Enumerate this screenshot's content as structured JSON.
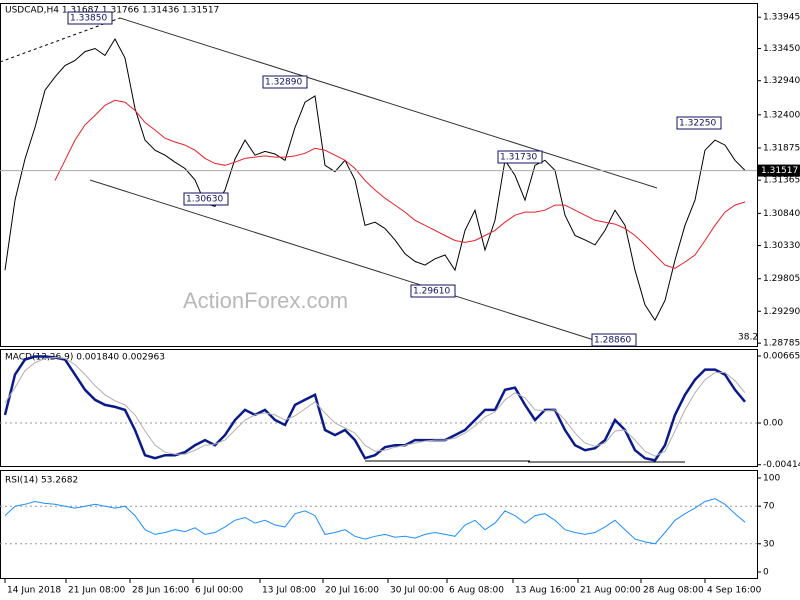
{
  "chart_data": [
    {
      "type": "line",
      "title": "USDCAD,H4  1.31687 1.31766 1.31436 1.31517",
      "watermark": "ActionForex.com",
      "last_price": 1.31517,
      "annotations": [
        "1.33850",
        "1.32890",
        "1.30630",
        "1.29610",
        "1.31730",
        "1.32250",
        "1.28860",
        "38.2"
      ],
      "xlim": [
        -0.5,
        75.2
      ],
      "ylim": [
        1.2874,
        1.3417
      ],
      "yticks": [
        {
          "value": 1.33945,
          "label": "1.33945"
        },
        {
          "value": 1.3345,
          "label": "1.33450"
        },
        {
          "value": 1.3294,
          "label": "1.32940"
        },
        {
          "value": 1.324,
          "label": "1.32400"
        },
        {
          "value": 1.31875,
          "label": "1.31875"
        },
        {
          "value": 1.31365,
          "label": "1.31365"
        },
        {
          "value": 1.3084,
          "label": "1.30840"
        },
        {
          "value": 1.3033,
          "label": "1.30330"
        },
        {
          "value": 1.29805,
          "label": "1.29805"
        },
        {
          "value": 1.2929,
          "label": "1.29290"
        },
        {
          "value": 1.28785,
          "label": "1.28785"
        }
      ],
      "series": [
        {
          "color": "#000000",
          "values": [
            1.2994,
            1.3105,
            1.317,
            1.322,
            1.3279,
            1.33,
            1.3318,
            1.3326,
            1.334,
            1.3345,
            1.3334,
            1.336,
            1.333,
            1.325,
            1.32,
            1.3184,
            1.3176,
            1.3165,
            1.3155,
            1.3137,
            1.31,
            1.3095,
            1.3121,
            1.317,
            1.32,
            1.3176,
            1.3182,
            1.3178,
            1.3168,
            1.322,
            1.326,
            1.327,
            1.316,
            1.315,
            1.3168,
            1.3137,
            1.3065,
            1.307,
            1.306,
            1.3042,
            1.302,
            1.3008,
            1.3002,
            1.3012,
            1.3018,
            1.2994,
            1.3057,
            1.3089,
            1.3026,
            1.3073,
            1.3168,
            1.3144,
            1.3105,
            1.316,
            1.3168,
            1.3152,
            1.3081,
            1.3049,
            1.3042,
            1.3034,
            1.3057,
            1.3089,
            1.3065,
            1.2994,
            1.2939,
            1.2915,
            1.2946,
            1.301,
            1.3065,
            1.3105,
            1.3184,
            1.32,
            1.3192,
            1.3168,
            1.3152
          ]
        },
        {
          "color": "#e8202a",
          "values": [
            null,
            null,
            null,
            null,
            null,
            1.3136,
            1.3168,
            1.32,
            1.3224,
            1.3239,
            1.3255,
            1.3263,
            1.326,
            1.3247,
            1.3228,
            1.3216,
            1.3203,
            1.3197,
            1.3192,
            1.3184,
            1.3171,
            1.3163,
            1.316,
            1.3165,
            1.3171,
            1.3173,
            1.3175,
            1.3173,
            1.3173,
            1.3175,
            1.3179,
            1.3187,
            1.3184,
            1.3176,
            1.3168,
            1.3155,
            1.3136,
            1.3121,
            1.3108,
            1.3097,
            1.3086,
            1.3073,
            1.3065,
            1.3057,
            1.3049,
            1.3041,
            1.3038,
            1.3041,
            1.3049,
            1.3057,
            1.307,
            1.3081,
            1.3086,
            1.3086,
            1.3089,
            1.3097,
            1.3097,
            1.3089,
            1.3081,
            1.3073,
            1.307,
            1.3067,
            1.306,
            1.3049,
            1.3034,
            1.3018,
            1.3002,
            1.2997,
            1.3007,
            1.3018,
            1.3041,
            1.3065,
            1.3086,
            1.3097,
            1.3102
          ]
        }
      ]
    },
    {
      "type": "line",
      "title": "MACD(12,26,9) 0.001840 0.002963",
      "xlim": [
        -0.5,
        75.2
      ],
      "ylim": [
        -0.00427,
        0.007346
      ],
      "yticks": [
        0.006651,
        {
          "value": 0,
          "label": "0.00"
        },
        -0.004145
      ],
      "levels": [
        0
      ],
      "series": [
        {
          "color": "#0a1a8a",
          "values": [
            0.0008,
            0.0048,
            0.0063,
            0.0066,
            0.0066,
            0.0065,
            0.0063,
            0.0048,
            0.0033,
            0.0023,
            0.0018,
            0.0016,
            0.0013,
            -0.0007,
            -0.0032,
            -0.0035,
            -0.0032,
            -0.0032,
            -0.0029,
            -0.0022,
            -0.0017,
            -0.0022,
            -0.0012,
            0.0003,
            0.0013,
            0.0008,
            0.0013,
            0.0003,
            -0.0002,
            0.0018,
            0.0023,
            0.0028,
            -0.0007,
            -0.0012,
            -0.0007,
            -0.0017,
            -0.0035,
            -0.0032,
            -0.0024,
            -0.0022,
            -0.0022,
            -0.0017,
            -0.0017,
            -0.0017,
            -0.0017,
            -0.0012,
            -0.0007,
            0.0003,
            0.0013,
            0.0013,
            0.0033,
            0.0035,
            0.0018,
            0.0003,
            0.0013,
            0.0013,
            -0.0007,
            -0.0022,
            -0.0027,
            -0.0025,
            -0.0017,
            0.0003,
            -0.0007,
            -0.0027,
            -0.0035,
            -0.0037,
            -0.0022,
            0.0008,
            0.0028,
            0.0043,
            0.0053,
            0.0053,
            0.0048,
            0.0033,
            0.0021
          ]
        },
        {
          "color": "#b0b0b0",
          "values": [
            0.002,
            0.0035,
            0.0052,
            0.006,
            0.0064,
            0.0065,
            0.0064,
            0.0058,
            0.0048,
            0.0037,
            0.0028,
            0.0022,
            0.0018,
            0.0008,
            -0.0008,
            -0.0022,
            -0.0029,
            -0.0031,
            -0.0031,
            -0.0027,
            -0.0022,
            -0.0021,
            -0.0017,
            -0.0007,
            0.0003,
            0.0008,
            0.001,
            0.0008,
            0.0003,
            0.0007,
            0.0014,
            0.0021,
            0.001,
            0,
            -0.0005,
            -0.001,
            -0.0022,
            -0.0028,
            -0.0027,
            -0.0024,
            -0.0022,
            -0.002,
            -0.0018,
            -0.0017,
            -0.0017,
            -0.0015,
            -0.001,
            -0.0003,
            0.0006,
            0.0011,
            0.0023,
            0.003,
            0.0025,
            0.0013,
            0.0012,
            0.0013,
            0.0003,
            -0.001,
            -0.002,
            -0.0023,
            -0.002,
            -0.0008,
            -0.0007,
            -0.0017,
            -0.0028,
            -0.0033,
            -0.0028,
            -0.0008,
            0.0013,
            0.003,
            0.0043,
            0.005,
            0.005,
            0.0042,
            0.003
          ]
        }
      ]
    },
    {
      "type": "line",
      "title": "RSI(14) 53.2682",
      "xlim": [
        -0.5,
        75.2
      ],
      "ylim": [
        -6.4,
        108.5
      ],
      "yticks": [
        100,
        70,
        30,
        0
      ],
      "levels": [
        70,
        30
      ],
      "xticks": [
        {
          "value": 0,
          "label": "14 Jun 2018"
        },
        {
          "value": 6.1,
          "label": "21 Jun 08:00"
        },
        {
          "value": 12.5,
          "label": "28 Jun 16:00"
        },
        {
          "value": 18.8,
          "label": "6 Jul 00:00"
        },
        {
          "value": 25.5,
          "label": "13 Jul 08:00"
        },
        {
          "value": 31.8,
          "label": "20 Jul 16:00"
        },
        {
          "value": 38.3,
          "label": "30 Jul 00:00"
        },
        {
          "value": 44.2,
          "label": "6 Aug 08:00"
        },
        {
          "value": 50.8,
          "label": "13 Aug 16:00"
        },
        {
          "value": 57.3,
          "label": "21 Aug 00:00"
        },
        {
          "value": 63.6,
          "label": "28 Aug 08:00"
        },
        {
          "value": 70,
          "label": "4 Sep 16:00"
        }
      ],
      "series": [
        {
          "color": "#1e8fff",
          "values": [
            60,
            70,
            72,
            75,
            73,
            72,
            70,
            68,
            70,
            72,
            70,
            68,
            70,
            60,
            45,
            40,
            42,
            45,
            43,
            47,
            40,
            42,
            48,
            55,
            58,
            52,
            55,
            50,
            48,
            62,
            65,
            60,
            40,
            42,
            45,
            38,
            35,
            38,
            40,
            37,
            38,
            36,
            40,
            42,
            40,
            38,
            50,
            55,
            45,
            52,
            65,
            60,
            52,
            60,
            62,
            55,
            45,
            42,
            40,
            42,
            48,
            55,
            45,
            35,
            32,
            30,
            42,
            55,
            62,
            68,
            75,
            78,
            72,
            62,
            53
          ]
        }
      ]
    }
  ]
}
